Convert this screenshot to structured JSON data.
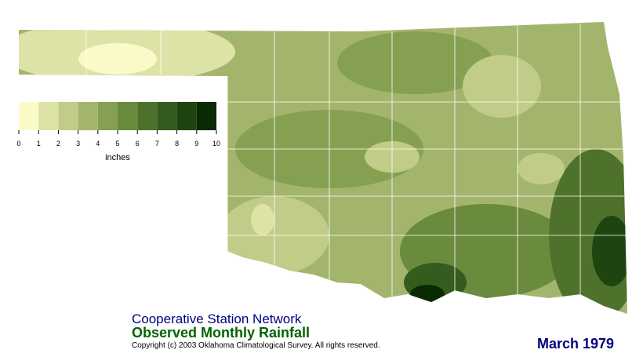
{
  "legend": {
    "bins": [
      0,
      1,
      2,
      3,
      4,
      5,
      6,
      7,
      8,
      9,
      10
    ],
    "colors": [
      "#fafac8",
      "#dde3a6",
      "#c0cc88",
      "#a3b56c",
      "#86a052",
      "#6a8a3e",
      "#4e722c",
      "#355b1e",
      "#1e4410",
      "#0a2a04"
    ],
    "unit": "inches"
  },
  "header": {
    "network": "Cooperative Station Network",
    "title": "Observed Monthly Rainfall",
    "copyright": "Copyright (c) 2003 Oklahoma Climatological Survey. All rights reserved.",
    "period": "March 1979"
  }
}
